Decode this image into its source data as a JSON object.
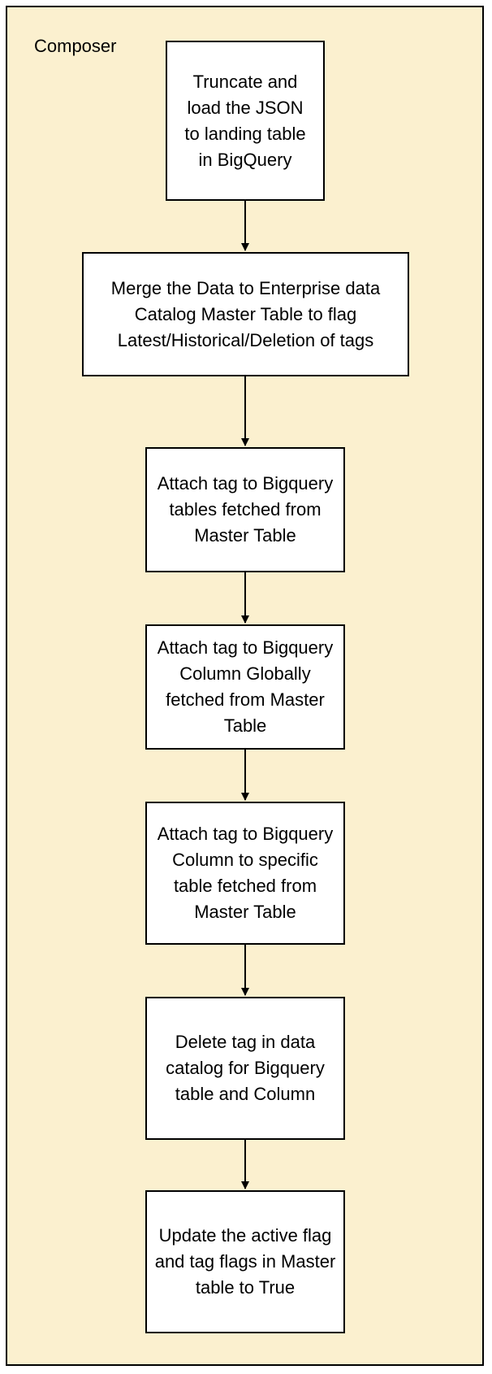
{
  "container": {
    "label": "Composer",
    "fill": "#fbf0cf"
  },
  "steps": [
    {
      "text": "Truncate and load the JSON to landing table in BigQuery"
    },
    {
      "text": "Merge the Data to Enterprise data Catalog Master Table to flag Latest/Historical/Deletion of tags"
    },
    {
      "text": "Attach tag to Bigquery tables fetched from Master Table"
    },
    {
      "text": "Attach tag to Bigquery Column Globally fetched from Master Table"
    },
    {
      "text": "Attach tag to Bigquery Column to specific table fetched from Master Table"
    },
    {
      "text": "Delete tag in data catalog for Bigquery table and Column"
    },
    {
      "text": "Update the active flag and tag flags in Master table to True"
    }
  ]
}
